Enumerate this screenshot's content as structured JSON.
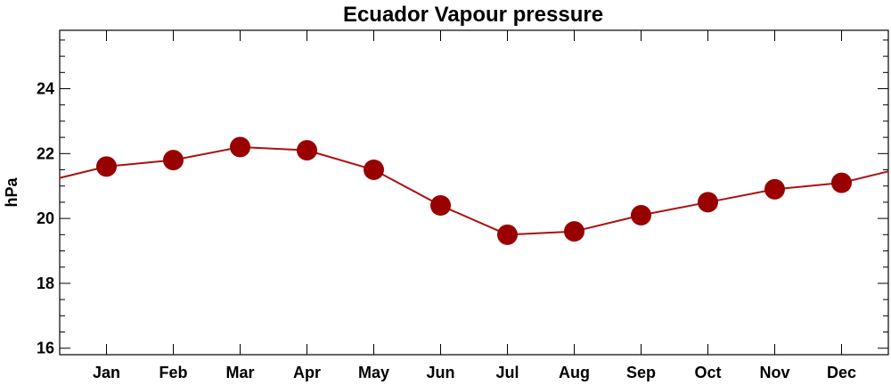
{
  "chart_data": {
    "type": "line",
    "title": "Ecuador Vapour pressure",
    "ylabel": "hPa",
    "xlabel": "",
    "categories": [
      "Jan",
      "Feb",
      "Mar",
      "Apr",
      "May",
      "Jun",
      "Jul",
      "Aug",
      "Sep",
      "Oct",
      "Nov",
      "Dec"
    ],
    "series": [
      {
        "values": [
          21.6,
          21.8,
          22.2,
          22.1,
          21.5,
          20.4,
          19.5,
          19.6,
          20.1,
          20.5,
          20.9,
          21.1
        ]
      }
    ],
    "ylim": [
      15.8,
      25.8
    ],
    "yticks": [
      16,
      18,
      20,
      22,
      24
    ],
    "grid": false,
    "legend": "none",
    "colors": {
      "series": "#990000",
      "line": "#aa1111",
      "axis": "#000000"
    }
  }
}
